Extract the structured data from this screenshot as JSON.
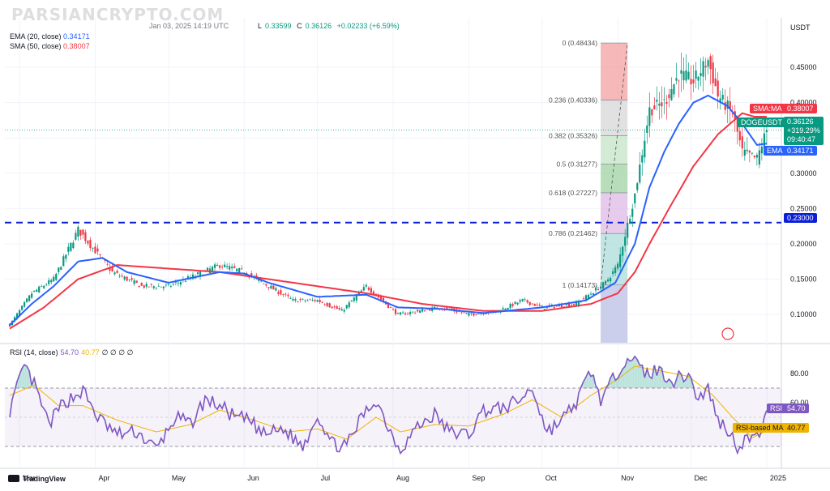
{
  "watermark": "PARSIANCRYPTO.COM",
  "header": {
    "line1_tail": "Jan 03, 2025 14:19 UTC",
    "ohlc": {
      "l_label": "L",
      "l": "0.33599",
      "c_label": "C",
      "c": "0.36126",
      "change": "+0.02233 (+6.59%)"
    },
    "ema_text": "EMA (20, close)",
    "ema_value": "0.34171",
    "sma_text": "SMA (50, close)",
    "sma_value": "0.38007"
  },
  "rsi_header": {
    "label": "RSI (14, close)",
    "rsi": "54.70",
    "rsi_ma": "40.77",
    "rest": "∅ ∅ ∅ ∅"
  },
  "axis": {
    "currency": "USDT"
  },
  "price_labels": {
    "sma": {
      "name": "SMA:MA",
      "value": "0.38007",
      "color": "#f23645"
    },
    "last": {
      "name": "DOGEUSDT",
      "value": "0.36126",
      "change": "+319.29%",
      "countdown": "09:40:47",
      "color": "#089981"
    },
    "ema": {
      "name": "EMA",
      "value": "0.34171",
      "color": "#2962ff"
    },
    "support": {
      "value": "0.23000",
      "color": "#0b1fd8"
    },
    "rsi": {
      "name": "RSI",
      "value": "54.70",
      "color": "#7e57c2"
    },
    "rsi_ma": {
      "name": "RSI-based MA",
      "value": "40.77",
      "color": "#f0b400"
    }
  },
  "brand": "TradingView",
  "chart_data": [
    {
      "type": "candlestick",
      "symbol": "DOGEUSDT",
      "title": "",
      "ylim": [
        0.06,
        0.52
      ],
      "y_ticks": [
        0.1,
        0.15,
        0.2,
        0.25,
        0.3,
        0.35,
        0.4,
        0.45
      ],
      "y_tick_labels": [
        "0.10000",
        "0.15000",
        "0.20000",
        "0.25000",
        "0.30000",
        "0.35000",
        "0.40000",
        "0.45000"
      ],
      "x_labels": [
        "Mar",
        "Apr",
        "May",
        "Jun",
        "Jul",
        "Aug",
        "Sep",
        "Oct",
        "Nov",
        "Dec",
        "2025"
      ],
      "x_label_days": [
        0,
        31,
        61,
        92,
        122,
        153,
        184,
        214,
        245,
        275,
        306
      ],
      "price_anchors": [
        [
          -4,
          0.085
        ],
        [
          5,
          0.13
        ],
        [
          14,
          0.15
        ],
        [
          24,
          0.22
        ],
        [
          31,
          0.19
        ],
        [
          38,
          0.16
        ],
        [
          50,
          0.14
        ],
        [
          61,
          0.14
        ],
        [
          72,
          0.155
        ],
        [
          82,
          0.17
        ],
        [
          92,
          0.16
        ],
        [
          102,
          0.14
        ],
        [
          112,
          0.12
        ],
        [
          122,
          0.12
        ],
        [
          132,
          0.105
        ],
        [
          142,
          0.14
        ],
        [
          150,
          0.115
        ],
        [
          155,
          0.1
        ],
        [
          164,
          0.105
        ],
        [
          172,
          0.11
        ],
        [
          184,
          0.1
        ],
        [
          196,
          0.105
        ],
        [
          206,
          0.12
        ],
        [
          214,
          0.11
        ],
        [
          228,
          0.115
        ],
        [
          240,
          0.145
        ],
        [
          245,
          0.17
        ],
        [
          252,
          0.27
        ],
        [
          258,
          0.39
        ],
        [
          264,
          0.4
        ],
        [
          270,
          0.44
        ],
        [
          276,
          0.43
        ],
        [
          282,
          0.46
        ],
        [
          286,
          0.41
        ],
        [
          292,
          0.385
        ],
        [
          296,
          0.33
        ],
        [
          302,
          0.32
        ],
        [
          306,
          0.361
        ]
      ],
      "ema_anchors": [
        [
          -4,
          0.085
        ],
        [
          5,
          0.115
        ],
        [
          14,
          0.14
        ],
        [
          24,
          0.175
        ],
        [
          34,
          0.18
        ],
        [
          44,
          0.16
        ],
        [
          61,
          0.145
        ],
        [
          82,
          0.16
        ],
        [
          92,
          0.158
        ],
        [
          102,
          0.145
        ],
        [
          122,
          0.125
        ],
        [
          142,
          0.128
        ],
        [
          155,
          0.11
        ],
        [
          172,
          0.108
        ],
        [
          190,
          0.102
        ],
        [
          214,
          0.11
        ],
        [
          232,
          0.12
        ],
        [
          244,
          0.145
        ],
        [
          252,
          0.2
        ],
        [
          258,
          0.28
        ],
        [
          264,
          0.33
        ],
        [
          270,
          0.37
        ],
        [
          276,
          0.4
        ],
        [
          282,
          0.41
        ],
        [
          290,
          0.395
        ],
        [
          296,
          0.37
        ],
        [
          302,
          0.34
        ],
        [
          306,
          0.342
        ]
      ],
      "sma_anchors": [
        [
          -4,
          0.08
        ],
        [
          10,
          0.11
        ],
        [
          24,
          0.15
        ],
        [
          40,
          0.17
        ],
        [
          61,
          0.165
        ],
        [
          82,
          0.16
        ],
        [
          102,
          0.15
        ],
        [
          122,
          0.14
        ],
        [
          142,
          0.13
        ],
        [
          165,
          0.115
        ],
        [
          190,
          0.105
        ],
        [
          214,
          0.105
        ],
        [
          234,
          0.115
        ],
        [
          245,
          0.13
        ],
        [
          252,
          0.16
        ],
        [
          258,
          0.2
        ],
        [
          266,
          0.25
        ],
        [
          276,
          0.31
        ],
        [
          286,
          0.355
        ],
        [
          296,
          0.385
        ],
        [
          301,
          0.38
        ],
        [
          306,
          0.38
        ]
      ],
      "support_level": {
        "value": 0.23,
        "label": "0.23000"
      },
      "fibonacci": {
        "x_start_day": 238,
        "x_end_day": 249,
        "levels": [
          {
            "ratio": "0",
            "value": 0.48434,
            "label": "0 (0.48434)"
          },
          {
            "ratio": "0.236",
            "value": 0.40336,
            "label": "0.236 (0.40336)"
          },
          {
            "ratio": "0.382",
            "value": 0.35326,
            "label": "0.382 (0.35326)"
          },
          {
            "ratio": "0.5",
            "value": 0.31277,
            "label": "0.5 (0.31277)"
          },
          {
            "ratio": "0.618",
            "value": 0.27227,
            "label": "0.618 (0.27227)"
          },
          {
            "ratio": "0.786",
            "value": 0.21462,
            "label": "0.786 (0.21462)"
          },
          {
            "ratio": "1",
            "value": 0.14173,
            "label": "1 (0.14173)"
          }
        ],
        "zone_colors": [
          "#f4a6a6",
          "#d9d9d9",
          "#c8e6c9",
          "#a5d6a7",
          "#e1bee7",
          "#b2dfdb",
          "#bbdefb",
          "#c5cae9"
        ]
      },
      "last_price": 0.36126
    },
    {
      "type": "line",
      "name": "RSI",
      "ylim": [
        15,
        100
      ],
      "y_ticks": [
        60,
        80
      ],
      "y_tick_labels": [
        "60.00",
        "80.00"
      ],
      "bands": {
        "upper": 70,
        "lower": 30
      },
      "rsi_anchors": [
        [
          -4,
          55
        ],
        [
          2,
          85
        ],
        [
          6,
          72
        ],
        [
          12,
          45
        ],
        [
          18,
          60
        ],
        [
          26,
          68
        ],
        [
          32,
          50
        ],
        [
          40,
          38
        ],
        [
          48,
          40
        ],
        [
          56,
          28
        ],
        [
          64,
          50
        ],
        [
          70,
          45
        ],
        [
          76,
          62
        ],
        [
          82,
          58
        ],
        [
          88,
          50
        ],
        [
          94,
          48
        ],
        [
          100,
          38
        ],
        [
          108,
          42
        ],
        [
          116,
          30
        ],
        [
          122,
          52
        ],
        [
          128,
          32
        ],
        [
          134,
          30
        ],
        [
          140,
          50
        ],
        [
          146,
          62
        ],
        [
          152,
          40
        ],
        [
          156,
          28
        ],
        [
          162,
          42
        ],
        [
          170,
          52
        ],
        [
          176,
          40
        ],
        [
          184,
          38
        ],
        [
          190,
          55
        ],
        [
          198,
          56
        ],
        [
          205,
          62
        ],
        [
          210,
          70
        ],
        [
          216,
          40
        ],
        [
          222,
          48
        ],
        [
          228,
          60
        ],
        [
          234,
          82
        ],
        [
          238,
          62
        ],
        [
          242,
          72
        ],
        [
          247,
          88
        ],
        [
          250,
          92
        ],
        [
          256,
          80
        ],
        [
          262,
          82
        ],
        [
          268,
          75
        ],
        [
          274,
          80
        ],
        [
          278,
          62
        ],
        [
          282,
          70
        ],
        [
          286,
          48
        ],
        [
          290,
          42
        ],
        [
          294,
          30
        ],
        [
          298,
          36
        ],
        [
          302,
          35
        ],
        [
          306,
          55
        ]
      ],
      "ma_anchors": [
        [
          -4,
          65
        ],
        [
          6,
          72
        ],
        [
          16,
          58
        ],
        [
          26,
          58
        ],
        [
          40,
          48
        ],
        [
          56,
          40
        ],
        [
          70,
          45
        ],
        [
          82,
          55
        ],
        [
          96,
          48
        ],
        [
          110,
          40
        ],
        [
          122,
          42
        ],
        [
          134,
          35
        ],
        [
          146,
          50
        ],
        [
          156,
          40
        ],
        [
          170,
          45
        ],
        [
          184,
          44
        ],
        [
          198,
          52
        ],
        [
          210,
          62
        ],
        [
          222,
          50
        ],
        [
          234,
          65
        ],
        [
          244,
          75
        ],
        [
          252,
          85
        ],
        [
          262,
          82
        ],
        [
          274,
          78
        ],
        [
          284,
          65
        ],
        [
          292,
          50
        ],
        [
          300,
          36
        ],
        [
          306,
          40.77
        ]
      ],
      "last_rsi": 54.7,
      "last_ma": 40.77
    }
  ]
}
